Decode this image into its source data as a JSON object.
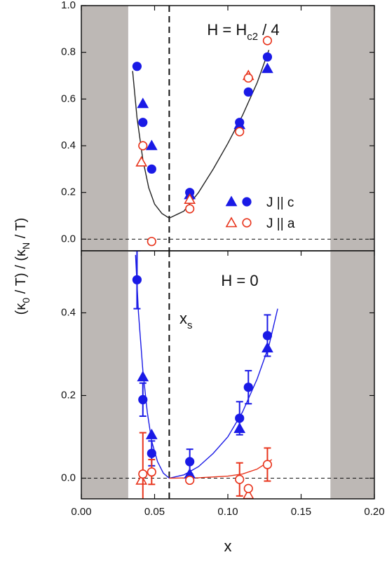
{
  "chart_data": [
    {
      "type": "scatter",
      "annotation": [
        "H = H",
        "c2",
        " / 4"
      ],
      "ylabel": [
        "(κ",
        "0",
        " / T) / (κ",
        "N",
        " / T)"
      ],
      "xlim": [
        0,
        0.2
      ],
      "ylim": [
        -0.05,
        1.0
      ],
      "yticks": [
        {
          "value": 0,
          "label": "0.0"
        },
        {
          "value": 0.2,
          "label": "0.2"
        },
        {
          "value": 0.4,
          "label": "0.4"
        },
        {
          "value": 0.6,
          "label": "0.6"
        },
        {
          "value": 0.8,
          "label": "0.8"
        },
        {
          "value": 1.0,
          "label": "1.0"
        }
      ],
      "shaded_regions": [
        [
          0,
          0.032
        ],
        [
          0.17,
          0.2
        ]
      ],
      "shade_color": "#bdb8b5",
      "vline": 0.06,
      "zero_line": true,
      "legend": "lower right",
      "fits": [
        {
          "color": "#222222",
          "x": [
            0.035,
            0.038,
            0.042,
            0.046,
            0.05,
            0.055,
            0.06,
            0.07,
            0.08,
            0.09,
            0.1,
            0.11,
            0.12,
            0.128
          ],
          "y": [
            0.72,
            0.52,
            0.34,
            0.22,
            0.15,
            0.11,
            0.09,
            0.12,
            0.2,
            0.3,
            0.41,
            0.53,
            0.67,
            0.81
          ]
        }
      ],
      "series": [
        {
          "name": "J || c",
          "color": "#1a1ae6",
          "marker": "triangle",
          "filled": true,
          "x": [
            0.042,
            0.048,
            0.074,
            0.108,
            0.127
          ],
          "values": [
            0.58,
            0.4,
            0.19,
            0.49,
            0.73
          ]
        },
        {
          "name": "J || c",
          "color": "#1a1ae6",
          "marker": "circle",
          "filled": true,
          "x": [
            0.038,
            0.042,
            0.048,
            0.074,
            0.108,
            0.114,
            0.127
          ],
          "values": [
            0.74,
            0.5,
            0.3,
            0.2,
            0.5,
            0.63,
            0.78
          ]
        },
        {
          "name": "J || a",
          "color": "#e8341c",
          "marker": "triangle",
          "filled": false,
          "x": [
            0.041,
            0.074,
            0.114
          ],
          "values": [
            0.33,
            0.17,
            0.7
          ]
        },
        {
          "name": "J || a",
          "color": "#e8341c",
          "marker": "circle",
          "filled": false,
          "x": [
            0.042,
            0.048,
            0.074,
            0.108,
            0.114,
            0.127
          ],
          "values": [
            0.4,
            -0.01,
            0.13,
            0.46,
            0.69,
            0.85
          ]
        }
      ]
    },
    {
      "type": "scatter",
      "annotation": [
        "H = 0"
      ],
      "vline_label": [
        "x",
        "s"
      ],
      "xlabel": "x",
      "xlim": [
        0,
        0.2
      ],
      "ylim": [
        -0.05,
        0.55
      ],
      "xticks": [
        {
          "value": 0,
          "label": "0.00"
        },
        {
          "value": 0.05,
          "label": "0.05"
        },
        {
          "value": 0.1,
          "label": "0.10"
        },
        {
          "value": 0.15,
          "label": "0.15"
        },
        {
          "value": 0.2,
          "label": "0.20"
        }
      ],
      "yticks": [
        {
          "value": 0,
          "label": "0.0"
        },
        {
          "value": 0.2,
          "label": "0.2"
        },
        {
          "value": 0.4,
          "label": "0.4"
        }
      ],
      "shaded_regions": [
        [
          0,
          0.032
        ],
        [
          0.17,
          0.2
        ]
      ],
      "shade_color": "#bdb8b5",
      "vline": 0.06,
      "zero_line": true,
      "fits": [
        {
          "color": "#1a1ae6",
          "x": [
            0.037,
            0.039,
            0.042,
            0.045,
            0.048,
            0.052,
            0.056,
            0.06,
            0.07,
            0.08,
            0.09,
            0.1,
            0.11,
            0.12,
            0.128,
            0.134
          ],
          "y": [
            0.54,
            0.4,
            0.26,
            0.16,
            0.09,
            0.04,
            0.012,
            0.0,
            0.008,
            0.028,
            0.06,
            0.1,
            0.16,
            0.24,
            0.32,
            0.41
          ]
        },
        {
          "color": "#e8341c",
          "x": [
            0.06,
            0.08,
            0.1,
            0.11,
            0.12,
            0.13
          ],
          "y": [
            0.0,
            0.001,
            0.005,
            0.01,
            0.022,
            0.045
          ]
        }
      ],
      "series": [
        {
          "color": "#1a1ae6",
          "marker": "triangle",
          "filled": true,
          "x": [
            0.042,
            0.048,
            0.074,
            0.108,
            0.127
          ],
          "values": [
            0.245,
            0.105,
            0.01,
            0.12,
            0.315
          ]
        },
        {
          "color": "#1a1ae6",
          "marker": "circle",
          "filled": true,
          "x": [
            0.038,
            0.042,
            0.048,
            0.074,
            0.108,
            0.114,
            0.127
          ],
          "values": [
            0.48,
            0.19,
            0.06,
            0.04,
            0.145,
            0.22,
            0.345
          ],
          "errors": [
            0.07,
            0.04,
            0.03,
            0.03,
            0.04,
            0.04,
            0.05
          ]
        },
        {
          "color": "#e8341c",
          "marker": "triangle",
          "filled": false,
          "x": [
            0.041,
            0.114
          ],
          "values": [
            -0.005,
            -0.04
          ]
        },
        {
          "color": "#e8341c",
          "marker": "circle",
          "filled": false,
          "x": [
            0.042,
            0.048,
            0.074,
            0.108,
            0.114,
            0.127
          ],
          "values": [
            0.01,
            0.015,
            -0.005,
            -0.003,
            -0.025,
            0.033
          ],
          "errors": [
            0.1,
            0.03,
            null,
            0.04,
            null,
            0.04
          ]
        }
      ]
    }
  ]
}
